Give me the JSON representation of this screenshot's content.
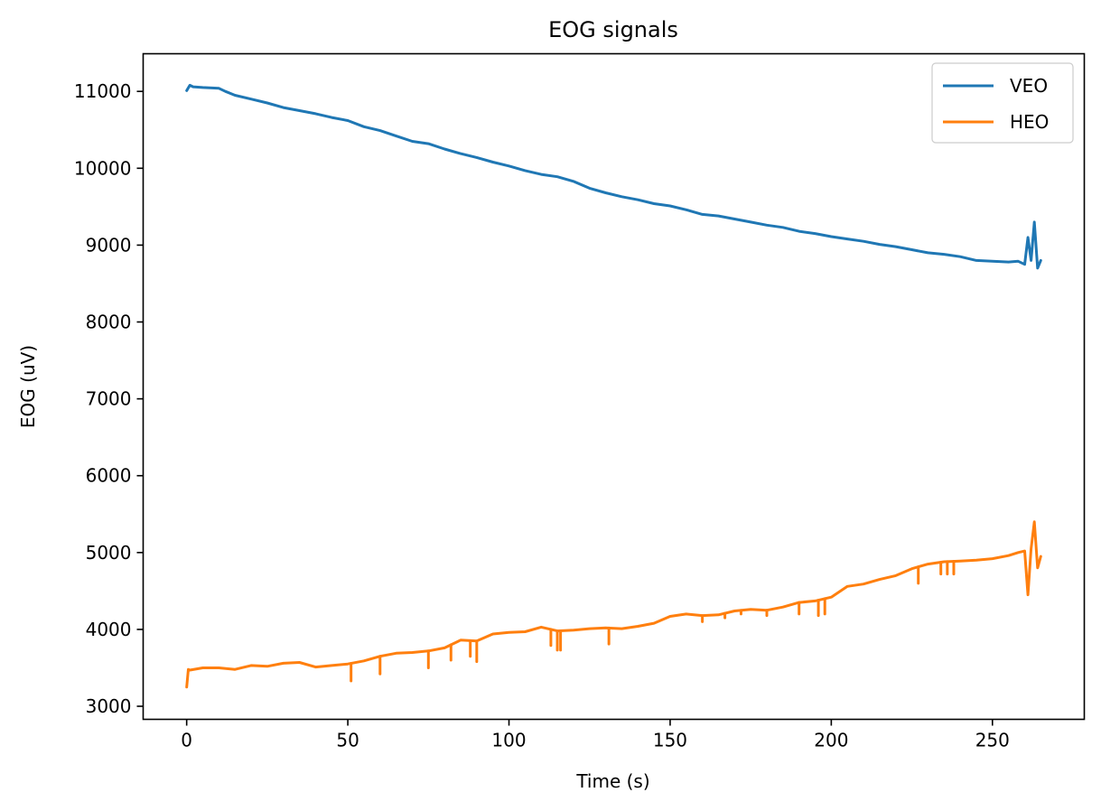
{
  "chart_data": {
    "type": "line",
    "title": "EOG signals",
    "xlabel": "Time (s)",
    "ylabel": "EOG (uV)",
    "xlim": [
      -13.5,
      278.5
    ],
    "ylim": [
      2830,
      11490
    ],
    "xticks": [
      0,
      50,
      100,
      150,
      200,
      250
    ],
    "yticks": [
      3000,
      4000,
      5000,
      6000,
      7000,
      8000,
      9000,
      10000,
      11000
    ],
    "grid": false,
    "legend_position": "top-right",
    "series": [
      {
        "name": "VEO",
        "color": "#1f77b4",
        "x": [
          0,
          1,
          2,
          5,
          10,
          12,
          15,
          20,
          25,
          30,
          35,
          40,
          45,
          50,
          55,
          60,
          65,
          70,
          75,
          80,
          85,
          90,
          95,
          100,
          105,
          110,
          115,
          120,
          125,
          130,
          135,
          140,
          145,
          150,
          155,
          160,
          165,
          170,
          175,
          180,
          185,
          190,
          195,
          200,
          205,
          210,
          215,
          220,
          225,
          230,
          235,
          240,
          245,
          250,
          255,
          258,
          260,
          261,
          262,
          263,
          264,
          265
        ],
        "y": [
          11010,
          11080,
          11060,
          11050,
          11040,
          11000,
          10950,
          10900,
          10850,
          10790,
          10750,
          10710,
          10660,
          10620,
          10540,
          10490,
          10420,
          10350,
          10320,
          10250,
          10190,
          10140,
          10080,
          10030,
          9970,
          9920,
          9890,
          9830,
          9740,
          9680,
          9630,
          9590,
          9540,
          9510,
          9460,
          9400,
          9380,
          9340,
          9300,
          9260,
          9230,
          9180,
          9150,
          9110,
          9080,
          9050,
          9010,
          8980,
          8940,
          8900,
          8880,
          8850,
          8800,
          8790,
          8780,
          8790,
          8750,
          9100,
          8800,
          9300,
          8700,
          8800
        ]
      },
      {
        "name": "HEO",
        "color": "#ff7f0e",
        "x": [
          0,
          0.5,
          1,
          5,
          10,
          15,
          20,
          25,
          30,
          35,
          40,
          45,
          50,
          55,
          60,
          65,
          70,
          75,
          80,
          85,
          90,
          95,
          100,
          105,
          110,
          115,
          120,
          125,
          130,
          135,
          140,
          145,
          150,
          155,
          160,
          165,
          170,
          175,
          180,
          185,
          190,
          195,
          200,
          205,
          210,
          215,
          220,
          225,
          230,
          235,
          240,
          245,
          250,
          255,
          258,
          260,
          261,
          262,
          263,
          264,
          265
        ],
        "y": [
          3250,
          3480,
          3470,
          3500,
          3500,
          3480,
          3530,
          3520,
          3560,
          3570,
          3510,
          3530,
          3550,
          3590,
          3650,
          3690,
          3700,
          3720,
          3760,
          3860,
          3850,
          3940,
          3960,
          3970,
          4030,
          3980,
          3990,
          4010,
          4020,
          4010,
          4040,
          4080,
          4170,
          4200,
          4180,
          4190,
          4240,
          4260,
          4250,
          4290,
          4350,
          4370,
          4420,
          4560,
          4590,
          4650,
          4700,
          4790,
          4850,
          4880,
          4890,
          4900,
          4920,
          4960,
          5000,
          5020,
          4450,
          5050,
          5400,
          4800,
          4950
        ]
      }
    ],
    "spikes": [
      {
        "series": "HEO",
        "x": [
          51,
          60,
          75,
          82,
          88,
          90,
          113,
          115,
          116,
          131,
          160,
          167,
          172,
          180,
          190,
          196,
          198,
          227,
          234,
          236,
          238
        ],
        "y": [
          3330,
          3420,
          3500,
          3600,
          3650,
          3580,
          3790,
          3730,
          3730,
          3810,
          4100,
          4150,
          4200,
          4180,
          4200,
          4180,
          4200,
          4600,
          4720,
          4720,
          4720
        ]
      }
    ]
  }
}
